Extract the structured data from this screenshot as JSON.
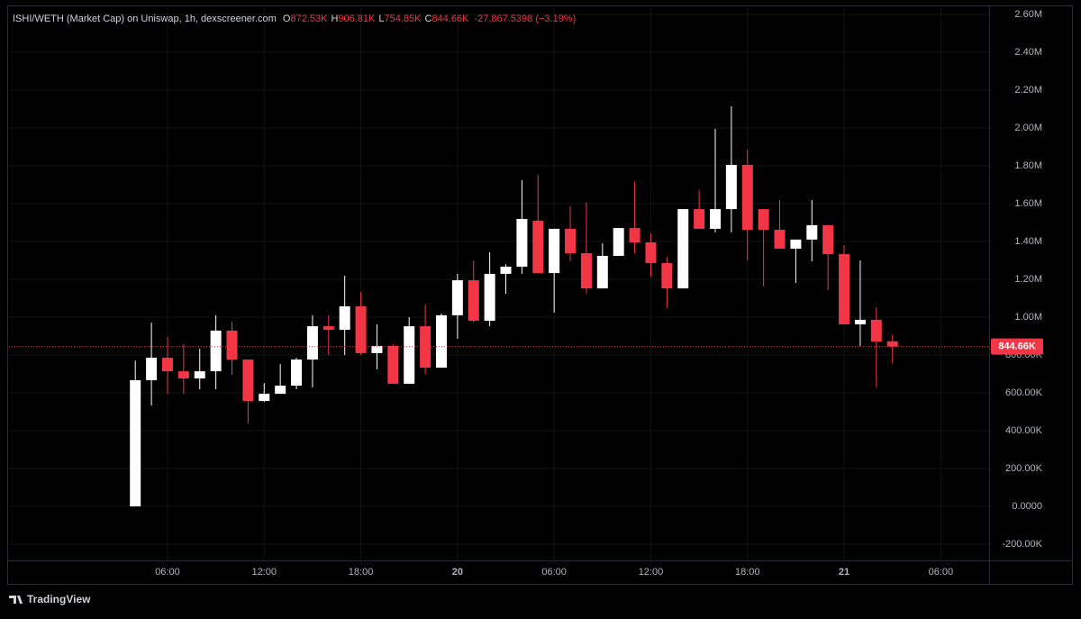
{
  "chart_data": {
    "type": "candlestick",
    "legend": {
      "symbol": "ISHI/WETH (Market Cap) on Uniswap, 1h, dexscreener.com",
      "items": [
        {
          "key": "O",
          "value": "872.53K"
        },
        {
          "key": "H",
          "value": "906.81K"
        },
        {
          "key": "L",
          "value": "754.85K"
        },
        {
          "key": "C",
          "value": "844.66K"
        }
      ],
      "change": "-27,867.5398 (−3.19%)"
    },
    "x": [
      4,
      5,
      6,
      7,
      8,
      9,
      10,
      11,
      12,
      13,
      14,
      15,
      16,
      17,
      18,
      19,
      20,
      21,
      22,
      23,
      24,
      25,
      26,
      27,
      28,
      29,
      30,
      31,
      32,
      33,
      34,
      35,
      36,
      37,
      38,
      39,
      40,
      41,
      42,
      43,
      44,
      45,
      46,
      47,
      48,
      49,
      50,
      51
    ],
    "open": [
      0,
      667000,
      786000,
      714000,
      676000,
      714000,
      929000,
      776000,
      557000,
      595000,
      638000,
      776000,
      952000,
      933000,
      1057000,
      810000,
      848000,
      648000,
      952000,
      733000,
      1010000,
      1195000,
      981000,
      1229000,
      1267000,
      1510000,
      1233000,
      1467000,
      1338000,
      1152000,
      1324000,
      1471000,
      1395000,
      1286000,
      1152000,
      1571000,
      1467000,
      1571000,
      1805000,
      1571000,
      1462000,
      1362000,
      1410000,
      1486000,
      1333000,
      962000,
      986000,
      872530
    ],
    "high": [
      770000,
      971000,
      895000,
      857000,
      833000,
      1010000,
      976000,
      776000,
      652000,
      752000,
      786000,
      1010000,
      1010000,
      1219000,
      1133000,
      962000,
      857000,
      1000000,
      1067000,
      1019000,
      1229000,
      1300000,
      1343000,
      1280000,
      1724000,
      1752000,
      1467000,
      1586000,
      1605000,
      1390000,
      1471000,
      1714000,
      1443000,
      1319000,
      1571000,
      1671000,
      1995000,
      2114000,
      1886000,
      1571000,
      1619000,
      1410000,
      1619000,
      1486000,
      1381000,
      1300000,
      1052000,
      906810
    ],
    "low": [
      0,
      533000,
      595000,
      595000,
      619000,
      619000,
      695000,
      438000,
      552000,
      595000,
      619000,
      629000,
      800000,
      800000,
      800000,
      724000,
      648000,
      648000,
      700000,
      733000,
      886000,
      971000,
      952000,
      1124000,
      1229000,
      1233000,
      1024000,
      1295000,
      1124000,
      1152000,
      1324000,
      1338000,
      1214000,
      1048000,
      1152000,
      1467000,
      1448000,
      1448000,
      1300000,
      1162000,
      1362000,
      1181000,
      1295000,
      1143000,
      962000,
      848000,
      629000,
      754850
    ],
    "close": [
      667000,
      786000,
      714000,
      676000,
      714000,
      929000,
      776000,
      557000,
      595000,
      638000,
      776000,
      952000,
      933000,
      1057000,
      810000,
      848000,
      648000,
      952000,
      733000,
      1010000,
      1195000,
      981000,
      1229000,
      1267000,
      1519000,
      1233000,
      1467000,
      1338000,
      1152000,
      1324000,
      1471000,
      1395000,
      1286000,
      1152000,
      1571000,
      1467000,
      1571000,
      1805000,
      1462000,
      1462000,
      1362000,
      1410000,
      1486000,
      1333000,
      962000,
      986000,
      871000,
      844660
    ],
    "up_color": "#ffffff",
    "down_color": "#f23645",
    "xlim": [
      -3.84,
      57.0
    ],
    "xticks": [
      {
        "value": 6,
        "label": "06:00"
      },
      {
        "value": 12,
        "label": "12:00"
      },
      {
        "value": 18,
        "label": "18:00"
      },
      {
        "value": 24,
        "label": "20"
      },
      {
        "value": 30,
        "label": "06:00"
      },
      {
        "value": 36,
        "label": "12:00"
      },
      {
        "value": 42,
        "label": "18:00"
      },
      {
        "value": 48,
        "label": "21"
      },
      {
        "value": 54,
        "label": "06:00"
      }
    ],
    "ylim": [
      -285700,
      2638100
    ],
    "yticks": [
      {
        "value": -200000,
        "label": "-200.00K"
      },
      {
        "value": 0,
        "label": "0.0000"
      },
      {
        "value": 200000,
        "label": "200.00K"
      },
      {
        "value": 400000,
        "label": "400.00K"
      },
      {
        "value": 600000,
        "label": "600.00K"
      },
      {
        "value": 800000,
        "label": "800.00K"
      },
      {
        "value": 1000000,
        "label": "1.00M"
      },
      {
        "value": 1200000,
        "label": "1.20M"
      },
      {
        "value": 1400000,
        "label": "1.40M"
      },
      {
        "value": 1600000,
        "label": "1.60M"
      },
      {
        "value": 1800000,
        "label": "1.80M"
      },
      {
        "value": 2000000,
        "label": "2.00M"
      },
      {
        "value": 2200000,
        "label": "2.20M"
      },
      {
        "value": 2400000,
        "label": "2.40M"
      },
      {
        "value": 2600000,
        "label": "2.60M"
      }
    ],
    "grid": true,
    "last_price": {
      "value": 844660,
      "label": "844.66K"
    },
    "brand": "TradingView"
  }
}
